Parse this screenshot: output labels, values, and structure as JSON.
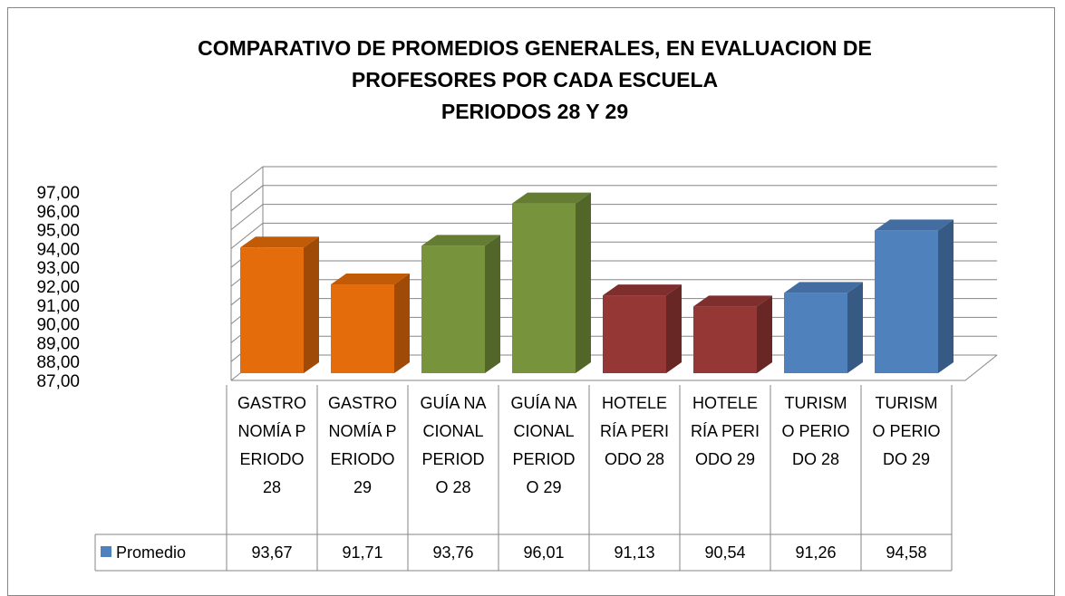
{
  "chart_data": {
    "type": "bar3d",
    "title": "COMPARATIVO DE PROMEDIOS GENERALES, EN EVALUACION DE PROFESORES POR CADA ESCUELA",
    "subtitle": "PERIODOS 28 Y 29",
    "categories": [
      "GASTRONOMÍA PERIODO 28",
      "GASTRONOMÍA PERIODO 29",
      "GUÍA NACIONAL PERIODO 28",
      "GUÍA NACIONAL PERIODO 29",
      "HOTELERÍA PERIODO 28",
      "HOTELERÍA PERIODO 29",
      "TURISMO PERIODO 28",
      "TURISMO PERIODO 29"
    ],
    "series": [
      {
        "name": "Promedio",
        "color": "#4f81bd",
        "colors": [
          "#e46c0a",
          "#e46c0a",
          "#77933c",
          "#77933c",
          "#953735",
          "#953735",
          "#4f81bd",
          "#4f81bd"
        ],
        "values": [
          93.67,
          91.71,
          93.76,
          96.01,
          91.13,
          90.54,
          91.26,
          94.58
        ],
        "value_labels": [
          "93,67",
          "91,71",
          "93,76",
          "96,01",
          "91,13",
          "90,54",
          "91,26",
          "94,58"
        ]
      }
    ],
    "ylim": [
      87,
      97
    ],
    "yticks": [
      {
        "value": 87,
        "label": "87,00"
      },
      {
        "value": 88,
        "label": "88,00"
      },
      {
        "value": 89,
        "label": "89,00"
      },
      {
        "value": 90,
        "label": "90,00"
      },
      {
        "value": 91,
        "label": "91,00"
      },
      {
        "value": 92,
        "label": "92,00"
      },
      {
        "value": 93,
        "label": "93,00"
      },
      {
        "value": 94,
        "label": "94,00"
      },
      {
        "value": 95,
        "label": "95,00"
      },
      {
        "value": 96,
        "label": "96,00"
      },
      {
        "value": 97,
        "label": "97,00"
      }
    ],
    "grid": true,
    "data_table": true
  }
}
